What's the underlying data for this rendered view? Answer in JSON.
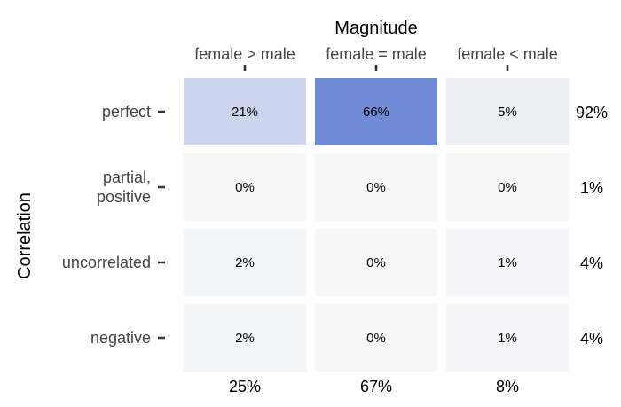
{
  "chart_data": {
    "type": "heatmap",
    "xlabel": "Magnitude",
    "ylabel": "Correlation",
    "x_categories": [
      "female > male",
      "female = male",
      "female < male"
    ],
    "y_categories": [
      "perfect",
      "partial,\npositive",
      "uncorrelated",
      "negative"
    ],
    "values": [
      [
        21,
        66,
        5
      ],
      [
        0,
        0,
        0
      ],
      [
        2,
        0,
        1
      ],
      [
        2,
        0,
        1
      ]
    ],
    "cell_labels": [
      [
        "21%",
        "66%",
        "5%"
      ],
      [
        "0%",
        "0%",
        "0%"
      ],
      [
        "2%",
        "0%",
        "1%"
      ],
      [
        "2%",
        "0%",
        "1%"
      ]
    ],
    "row_totals": [
      "92%",
      "1%",
      "4%",
      "4%"
    ],
    "col_totals": [
      "25%",
      "67%",
      "8%"
    ],
    "color_low": "#f7f7f7",
    "color_high": "#6f8bd6",
    "grid": false,
    "legend": "none"
  }
}
